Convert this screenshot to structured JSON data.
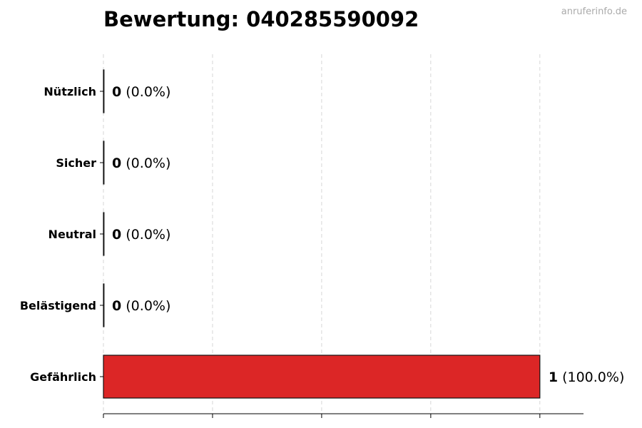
{
  "chart_data": {
    "type": "bar",
    "orientation": "horizontal",
    "title": "Bewertung: 040285590092",
    "watermark": "anruferinfo.de",
    "categories": [
      "Nützlich",
      "Sicher",
      "Neutral",
      "Belästigend",
      "Gefährlich"
    ],
    "values": [
      0,
      0,
      0,
      0,
      1
    ],
    "percent_labels": [
      "(0.0%)",
      "(0.0%)",
      "(0.0%)",
      "(0.0%)",
      "(100.0%)"
    ],
    "xlim": [
      0,
      1.1
    ],
    "xticks": [
      0,
      0.25,
      0.5,
      0.75,
      1
    ],
    "grid": "vertical dashed",
    "bar_color": "#dc2626",
    "xlabel": "",
    "ylabel": ""
  }
}
